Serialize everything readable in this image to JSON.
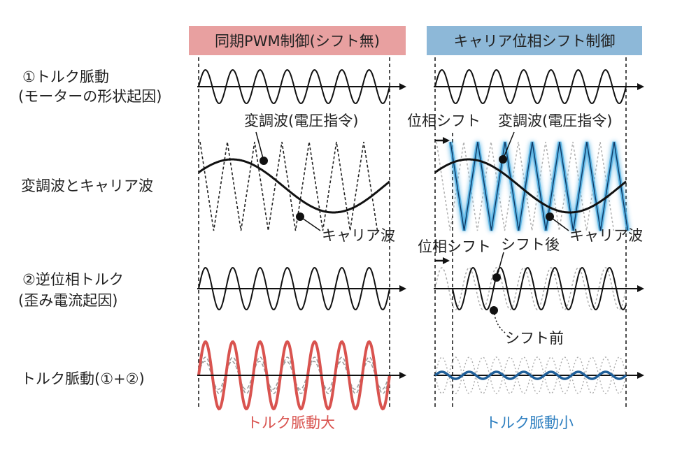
{
  "headers": {
    "left": "同期PWM制御(シフト無)",
    "right": "キャリア位相シフト制御"
  },
  "rows": {
    "row1_line1": "①トルク脈動",
    "row1_line2": "(モーターの形状起因)",
    "row2": "変調波とキャリア波",
    "row3_line1": "②逆位相トルク",
    "row3_line2": "(歪み電流起因)",
    "row4": "トルク脈動(①+②)"
  },
  "annotations": {
    "modulation_left": "変調波(電圧指令)",
    "modulation_right": "変調波(電圧指令)",
    "carrier_left": "キャリア波",
    "carrier_right": "キャリア波",
    "phase_shift_1": "位相シフト",
    "phase_shift_2": "位相シフト",
    "after_shift": "シフト後",
    "before_shift": "シフト前"
  },
  "footers": {
    "left": "トルク脈動大",
    "right": "トルク脈動小"
  },
  "colors": {
    "header_left_bg": "#e8a0a0",
    "header_right_bg": "#8db8d8",
    "red_wave": "#d9534f",
    "blue_wave": "#1f5f99",
    "carrier_glow": "#3fa9e0",
    "footer_left": "#d9534f",
    "footer_right": "#2e7fc0"
  }
}
